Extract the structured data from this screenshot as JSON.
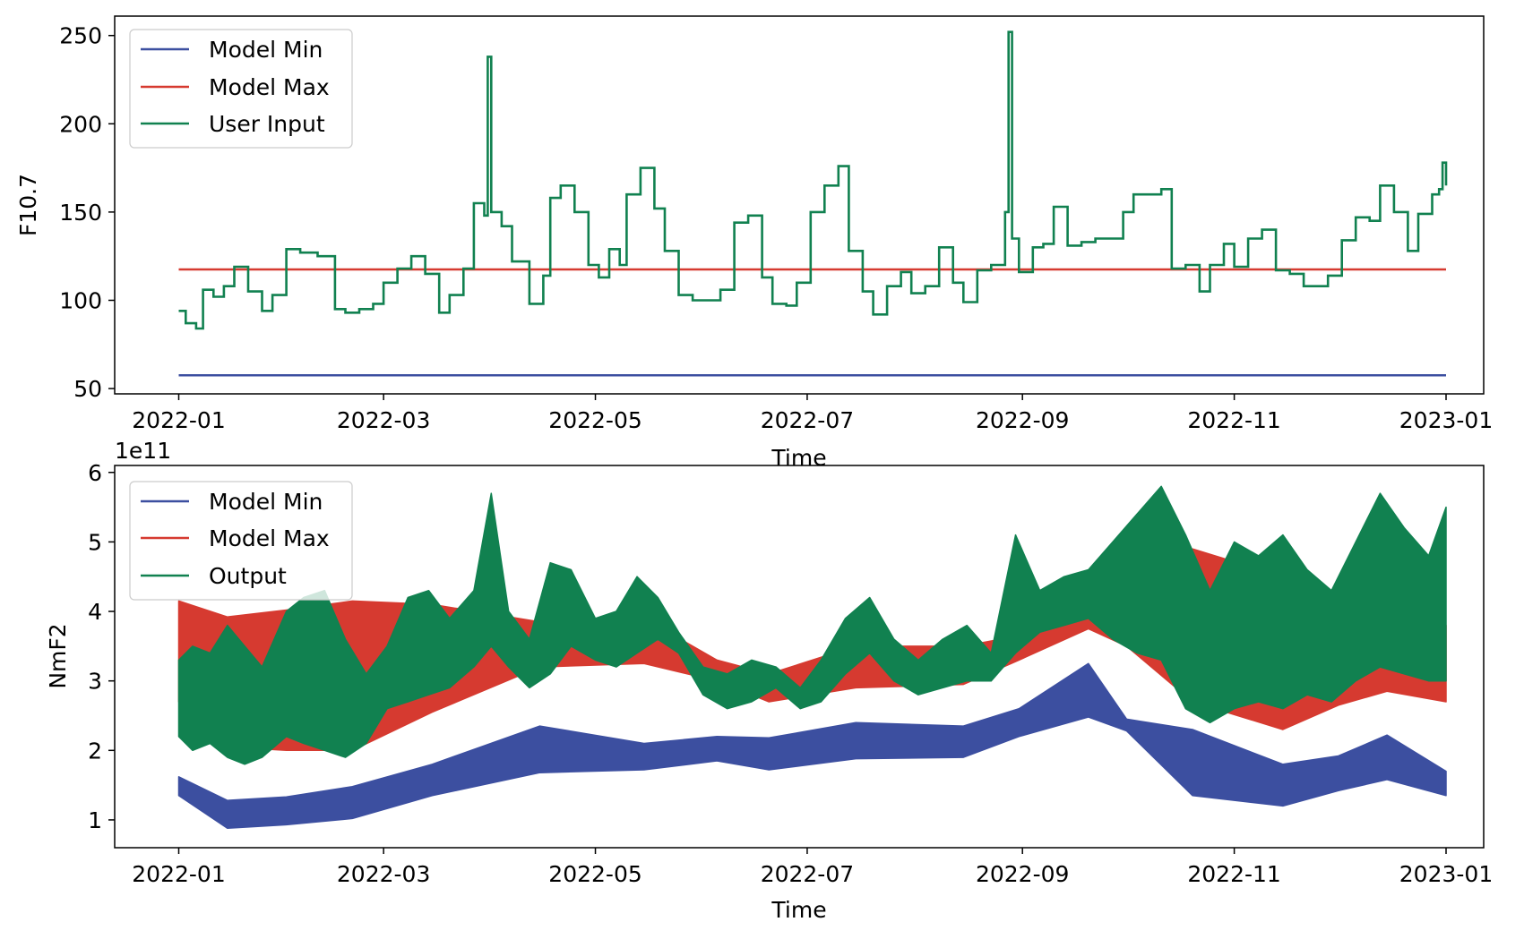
{
  "chart_data": [
    {
      "type": "line",
      "xlabel": "Time",
      "ylabel": "F10.7",
      "xlim": [
        "2022-01-01",
        "2023-01-01"
      ],
      "ylim": [
        47,
        261
      ],
      "xticks": [
        "2022-01",
        "2022-03",
        "2022-05",
        "2022-07",
        "2022-09",
        "2022-11",
        "2023-01"
      ],
      "yticks": [
        50,
        100,
        150,
        200,
        250
      ],
      "legend": {
        "placement": "upper-left",
        "entries": [
          "Model Min",
          "Model Max",
          "User Input"
        ]
      },
      "grid": false,
      "series": [
        {
          "name": "Model Min",
          "color": "#3c4fa0",
          "constant": 57.5
        },
        {
          "name": "Model Max",
          "color": "#d63a30",
          "constant": 117.5
        },
        {
          "name": "User Input",
          "color": "#118150",
          "x": [
            "2022-01-01",
            "2022-01-03",
            "2022-01-06",
            "2022-01-08",
            "2022-01-11",
            "2022-01-14",
            "2022-01-17",
            "2022-01-21",
            "2022-01-25",
            "2022-01-28",
            "2022-02-01",
            "2022-02-05",
            "2022-02-10",
            "2022-02-15",
            "2022-02-18",
            "2022-02-22",
            "2022-02-26",
            "2022-03-01",
            "2022-03-05",
            "2022-03-09",
            "2022-03-13",
            "2022-03-17",
            "2022-03-20",
            "2022-03-24",
            "2022-03-27",
            "2022-03-30",
            "2022-03-31",
            "2022-04-01",
            "2022-04-04",
            "2022-04-07",
            "2022-04-12",
            "2022-04-16",
            "2022-04-18",
            "2022-04-21",
            "2022-04-25",
            "2022-04-29",
            "2022-05-02",
            "2022-05-05",
            "2022-05-08",
            "2022-05-10",
            "2022-05-14",
            "2022-05-18",
            "2022-05-21",
            "2022-05-25",
            "2022-05-29",
            "2022-06-02",
            "2022-06-06",
            "2022-06-10",
            "2022-06-14",
            "2022-06-18",
            "2022-06-21",
            "2022-06-25",
            "2022-06-28",
            "2022-07-02",
            "2022-07-06",
            "2022-07-10",
            "2022-07-13",
            "2022-07-17",
            "2022-07-20",
            "2022-07-24",
            "2022-07-28",
            "2022-07-31",
            "2022-08-04",
            "2022-08-08",
            "2022-08-12",
            "2022-08-15",
            "2022-08-19",
            "2022-08-23",
            "2022-08-27",
            "2022-08-28",
            "2022-08-29",
            "2022-08-31",
            "2022-09-04",
            "2022-09-07",
            "2022-09-10",
            "2022-09-14",
            "2022-09-18",
            "2022-09-22",
            "2022-09-26",
            "2022-09-30",
            "2022-10-03",
            "2022-10-07",
            "2022-10-11",
            "2022-10-14",
            "2022-10-18",
            "2022-10-22",
            "2022-10-25",
            "2022-10-29",
            "2022-11-01",
            "2022-11-05",
            "2022-11-09",
            "2022-11-13",
            "2022-11-17",
            "2022-11-21",
            "2022-11-25",
            "2022-11-28",
            "2022-12-02",
            "2022-12-06",
            "2022-12-10",
            "2022-12-13",
            "2022-12-17",
            "2022-12-21",
            "2022-12-24",
            "2022-12-28",
            "2022-12-30",
            "2022-12-31",
            "2023-01-01"
          ],
          "values": [
            94,
            87,
            84,
            106,
            102,
            108,
            119,
            105,
            94,
            103,
            129,
            127,
            125,
            95,
            93,
            95,
            98,
            110,
            118,
            125,
            115,
            93,
            103,
            118,
            155,
            148,
            238,
            150,
            142,
            122,
            98,
            114,
            158,
            165,
            150,
            120,
            113,
            129,
            120,
            160,
            175,
            152,
            128,
            103,
            100,
            100,
            106,
            144,
            148,
            113,
            98,
            97,
            110,
            150,
            165,
            176,
            128,
            105,
            92,
            108,
            116,
            104,
            108,
            130,
            110,
            99,
            117,
            120,
            150,
            252,
            135,
            116,
            130,
            132,
            153,
            131,
            133,
            135,
            135,
            150,
            160,
            160,
            163,
            118,
            120,
            105,
            120,
            132,
            119,
            135,
            140,
            117,
            115,
            108,
            108,
            114,
            134,
            147,
            145,
            165,
            150,
            128,
            149,
            160,
            163,
            178,
            165
          ]
        }
      ]
    },
    {
      "type": "area",
      "xlabel": "Time",
      "ylabel": "NmF2",
      "y_offset_label": "1e11",
      "xlim": [
        "2022-01-01",
        "2023-01-01"
      ],
      "ylim": [
        0.6,
        6.1
      ],
      "xticks": [
        "2022-01",
        "2022-03",
        "2022-05",
        "2022-07",
        "2022-09",
        "2022-11",
        "2023-01"
      ],
      "yticks": [
        1,
        2,
        3,
        4,
        5,
        6
      ],
      "legend": {
        "placement": "upper-left",
        "entries": [
          "Model Min",
          "Model Max",
          "Output"
        ]
      },
      "grid": false,
      "series": [
        {
          "name": "Model Min",
          "color": "#3c4fa0",
          "x": [
            "2022-01-01",
            "2022-01-15",
            "2022-02-01",
            "2022-02-20",
            "2022-03-15",
            "2022-04-15",
            "2022-05-15",
            "2022-06-05",
            "2022-06-20",
            "2022-07-15",
            "2022-08-15",
            "2022-08-31",
            "2022-09-20",
            "2022-10-01",
            "2022-10-20",
            "2022-11-15",
            "2022-12-01",
            "2022-12-15",
            "2023-01-01"
          ],
          "lower": [
            1.35,
            0.88,
            0.93,
            1.02,
            1.35,
            1.68,
            1.72,
            1.85,
            1.72,
            1.88,
            1.9,
            2.2,
            2.48,
            2.28,
            1.35,
            1.2,
            1.42,
            1.58,
            1.35
          ],
          "upper": [
            1.62,
            1.28,
            1.33,
            1.48,
            1.8,
            2.35,
            2.1,
            2.2,
            2.18,
            2.4,
            2.35,
            2.6,
            3.25,
            2.45,
            2.3,
            1.8,
            1.92,
            2.22,
            1.7
          ]
        },
        {
          "name": "Model Max",
          "color": "#d63a30",
          "x": [
            "2022-01-01",
            "2022-01-15",
            "2022-02-01",
            "2022-02-20",
            "2022-03-15",
            "2022-04-15",
            "2022-05-15",
            "2022-06-05",
            "2022-06-20",
            "2022-07-15",
            "2022-08-15",
            "2022-08-31",
            "2022-09-20",
            "2022-10-01",
            "2022-10-20",
            "2022-11-15",
            "2022-12-01",
            "2022-12-15",
            "2023-01-01"
          ],
          "lower": [
            2.7,
            2.05,
            2.0,
            2.0,
            2.55,
            3.2,
            3.25,
            3.0,
            2.7,
            2.9,
            2.95,
            3.3,
            3.75,
            3.5,
            2.7,
            2.3,
            2.65,
            2.85,
            2.7
          ],
          "upper": [
            4.15,
            3.92,
            4.02,
            4.15,
            4.1,
            3.85,
            3.9,
            3.3,
            3.1,
            3.5,
            3.5,
            3.65,
            4.0,
            4.75,
            4.9,
            4.5,
            4.25,
            4.5,
            3.8
          ]
        },
        {
          "name": "Output",
          "color": "#118150",
          "x": [
            "2022-01-01",
            "2022-01-05",
            "2022-01-10",
            "2022-01-15",
            "2022-01-20",
            "2022-01-25",
            "2022-02-01",
            "2022-02-06",
            "2022-02-12",
            "2022-02-18",
            "2022-02-24",
            "2022-03-02",
            "2022-03-08",
            "2022-03-14",
            "2022-03-20",
            "2022-03-27",
            "2022-04-01",
            "2022-04-06",
            "2022-04-12",
            "2022-04-18",
            "2022-04-24",
            "2022-05-01",
            "2022-05-07",
            "2022-05-13",
            "2022-05-19",
            "2022-05-25",
            "2022-06-01",
            "2022-06-08",
            "2022-06-15",
            "2022-06-22",
            "2022-06-29",
            "2022-07-05",
            "2022-07-12",
            "2022-07-19",
            "2022-07-26",
            "2022-08-02",
            "2022-08-09",
            "2022-08-16",
            "2022-08-23",
            "2022-08-30",
            "2022-09-06",
            "2022-09-13",
            "2022-09-20",
            "2022-09-27",
            "2022-10-04",
            "2022-10-11",
            "2022-10-18",
            "2022-10-25",
            "2022-11-01",
            "2022-11-08",
            "2022-11-15",
            "2022-11-22",
            "2022-11-29",
            "2022-12-06",
            "2022-12-13",
            "2022-12-20",
            "2022-12-27",
            "2023-01-01"
          ],
          "lower": [
            2.2,
            2.0,
            2.1,
            1.9,
            1.8,
            1.9,
            2.2,
            2.1,
            2.0,
            1.9,
            2.1,
            2.6,
            2.7,
            2.8,
            2.9,
            3.2,
            3.5,
            3.2,
            2.9,
            3.1,
            3.5,
            3.3,
            3.2,
            3.4,
            3.6,
            3.4,
            2.8,
            2.6,
            2.7,
            2.9,
            2.6,
            2.7,
            3.1,
            3.4,
            3.0,
            2.8,
            2.9,
            3.0,
            3.0,
            3.4,
            3.7,
            3.8,
            3.9,
            3.6,
            3.4,
            3.3,
            2.6,
            2.4,
            2.6,
            2.7,
            2.6,
            2.8,
            2.7,
            3.0,
            3.2,
            3.1,
            3.0,
            3.0
          ],
          "upper": [
            3.3,
            3.5,
            3.4,
            3.8,
            3.5,
            3.2,
            4.0,
            4.2,
            4.3,
            3.6,
            3.1,
            3.5,
            4.2,
            4.3,
            3.9,
            4.3,
            5.7,
            4.0,
            3.6,
            4.7,
            4.6,
            3.9,
            4.0,
            4.5,
            4.2,
            3.7,
            3.2,
            3.1,
            3.3,
            3.2,
            2.9,
            3.3,
            3.9,
            4.2,
            3.6,
            3.3,
            3.6,
            3.8,
            3.4,
            5.1,
            4.3,
            4.5,
            4.6,
            5.0,
            5.4,
            5.8,
            5.1,
            4.3,
            5.0,
            4.8,
            5.1,
            4.6,
            4.3,
            5.0,
            5.7,
            5.2,
            4.8,
            5.5
          ]
        }
      ]
    }
  ]
}
